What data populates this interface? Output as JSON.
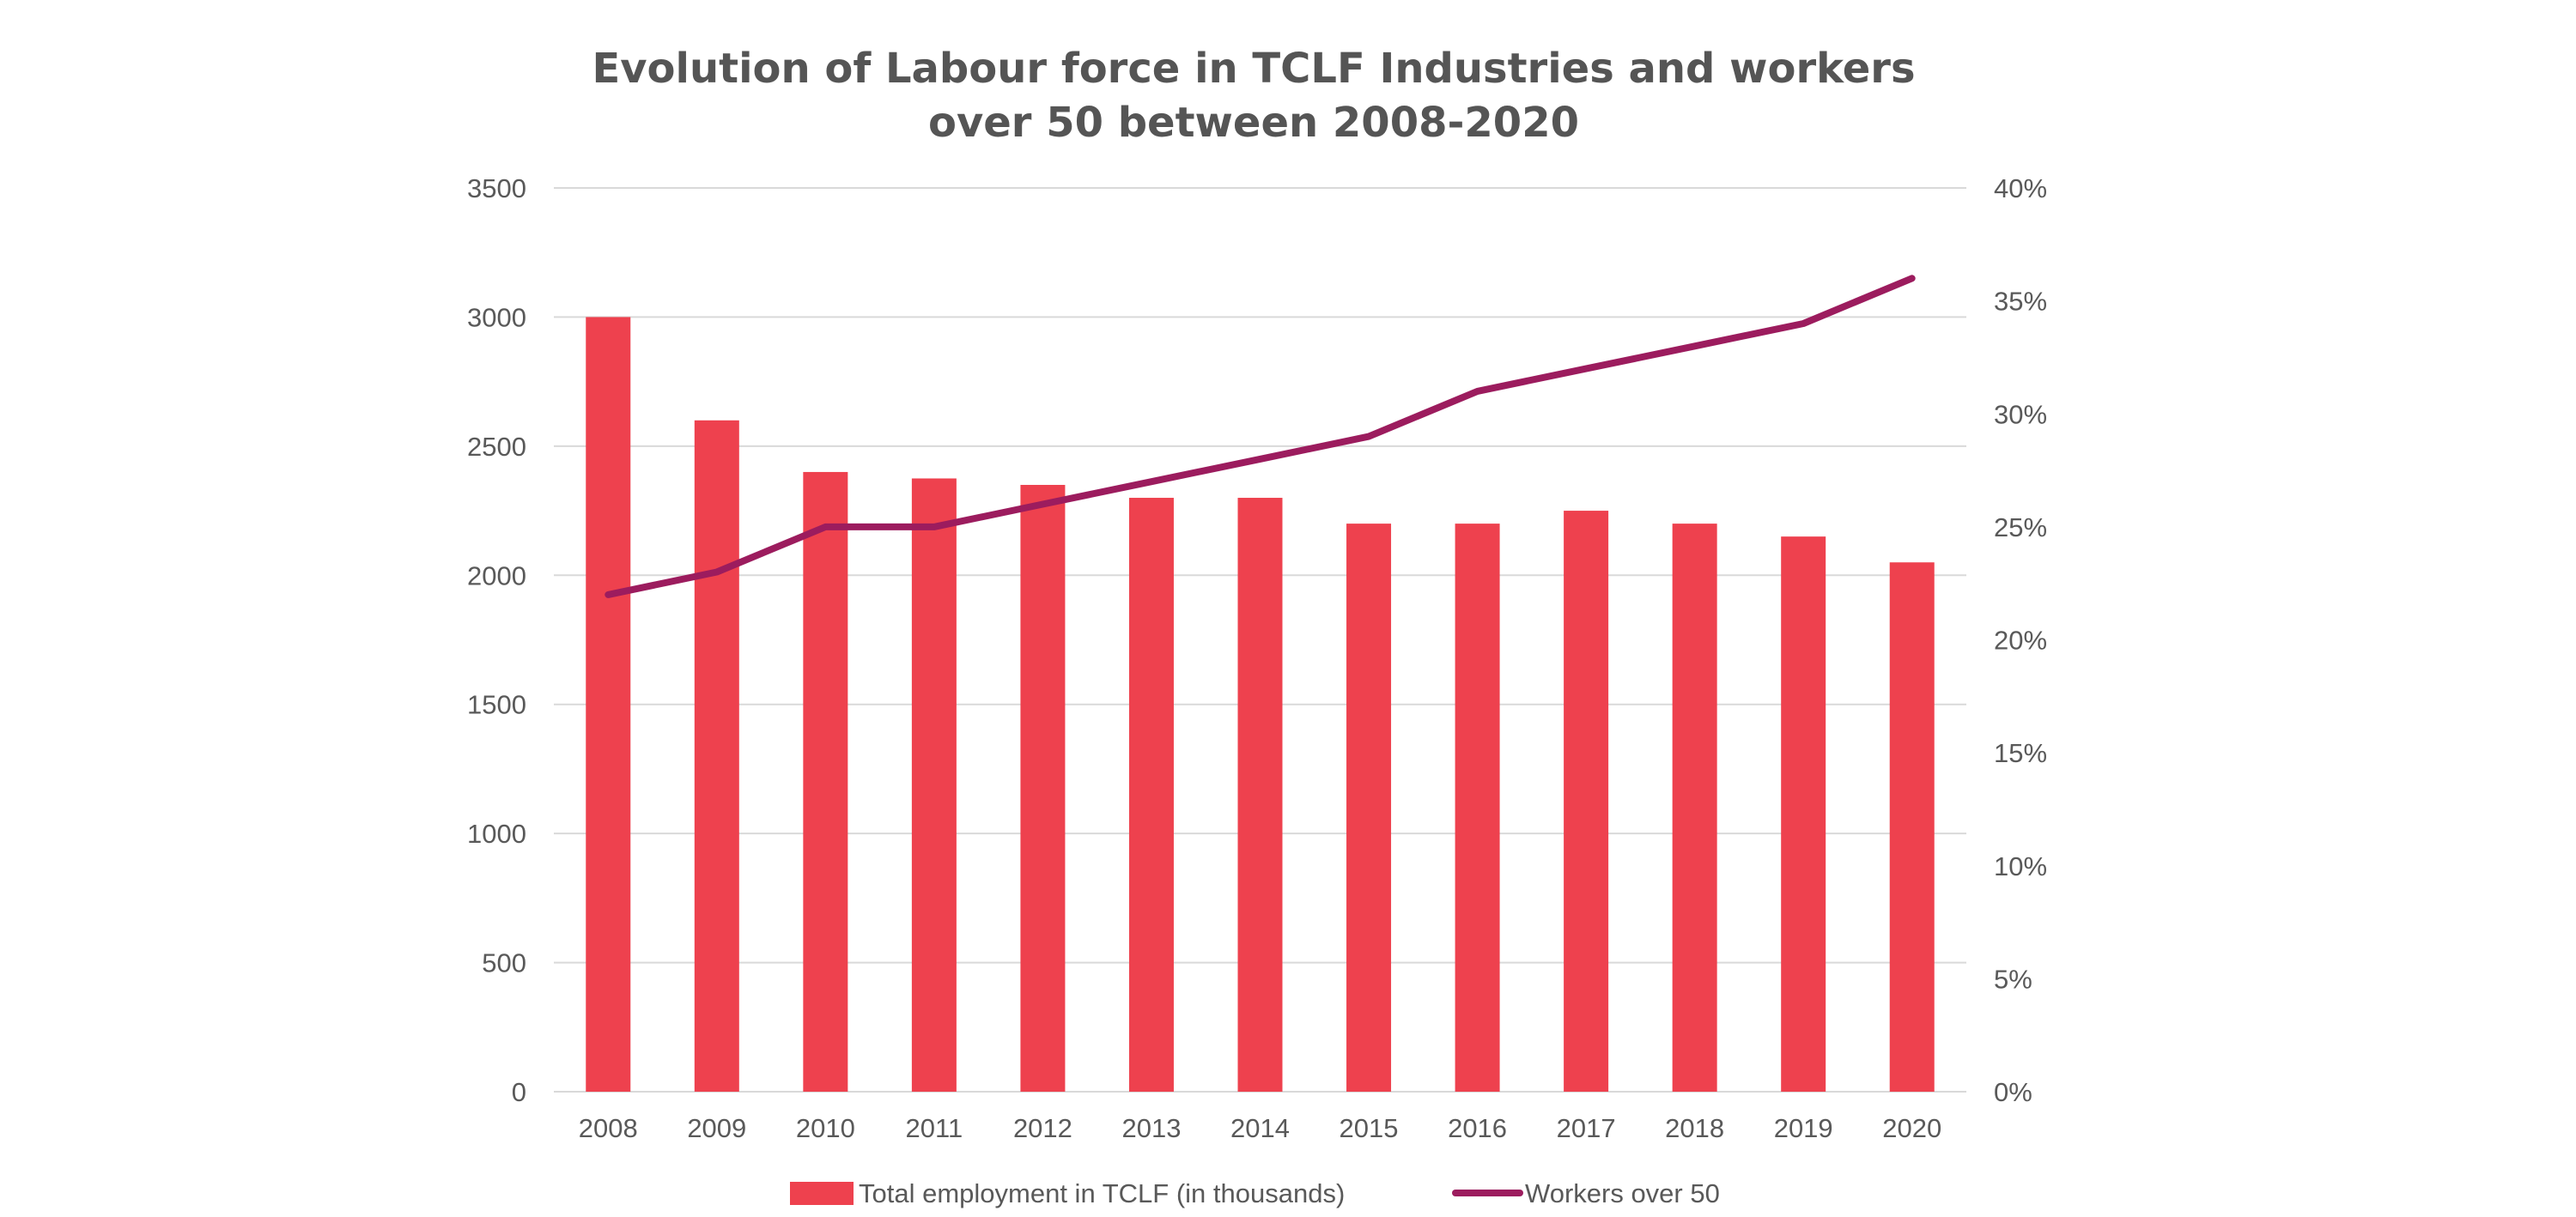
{
  "chart_data": {
    "type": "bar",
    "title_lines": [
      "Evolution of Labour force in TCLF Industries and workers",
      "over 50 between 2008-2020"
    ],
    "categories": [
      "2008",
      "2009",
      "2010",
      "2011",
      "2012",
      "2013",
      "2014",
      "2015",
      "2016",
      "2017",
      "2018",
      "2019",
      "2020"
    ],
    "series": [
      {
        "name": "Total employment in TCLF (in thousands)",
        "type": "bar",
        "axis": "left",
        "color": "#ee414e",
        "values": [
          3000,
          2600,
          2400,
          2375,
          2350,
          2300,
          2300,
          2200,
          2200,
          2250,
          2200,
          2150,
          2050
        ]
      },
      {
        "name": "Workers over 50",
        "type": "line",
        "axis": "right",
        "color": "#9c1c5e",
        "values": [
          0.22,
          0.23,
          0.25,
          0.25,
          0.26,
          0.27,
          0.28,
          0.29,
          0.31,
          0.32,
          0.33,
          0.34,
          0.36
        ]
      }
    ],
    "y_left": {
      "ylim": [
        0,
        3500
      ],
      "ticks": [
        "0",
        "500",
        "1000",
        "1500",
        "2000",
        "2500",
        "3000",
        "3500"
      ]
    },
    "y_right": {
      "ylim": [
        0,
        0.4
      ],
      "ticks": [
        "0%",
        "5%",
        "10%",
        "15%",
        "20%",
        "25%",
        "30%",
        "35%",
        "40%"
      ]
    },
    "grid": true,
    "legend_position": "bottom"
  }
}
